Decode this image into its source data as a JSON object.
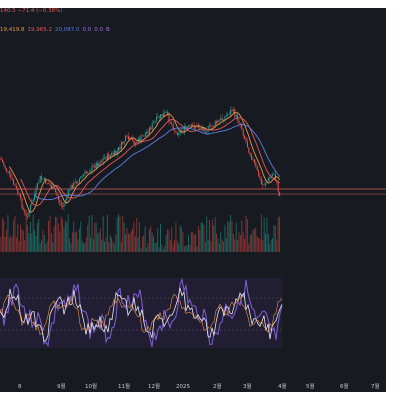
{
  "legend": {
    "price_line": "140.5 −71.4 (−0.38%)",
    "ma_values": [
      {
        "text": "19,419.8",
        "color": "#e8964a"
      },
      {
        "text": "19,965.2",
        "color": "#e05a5a"
      },
      {
        "text": "20,087.0",
        "color": "#5b7fe0"
      },
      {
        "text": "0.0",
        "color": "#a070d8"
      },
      {
        "text": "0.0",
        "color": "#a070d8"
      },
      {
        "text": "B",
        "color": "#a070d8"
      }
    ]
  },
  "x_axis_labels": [
    "8",
    "9월",
    "10월",
    "11월",
    "12월",
    "2025",
    "2월",
    "3월",
    "4월",
    "5월",
    "6월",
    "7월"
  ],
  "colors": {
    "background": "#171a21",
    "candle_up": "#26a69a",
    "candle_down": "#ef5350",
    "ma_fast": "#e8964a",
    "ma_mid": "#e05a5a",
    "ma_slow": "#5b7fe0",
    "horizontal_line": "#e05a5a",
    "osc_fast": "#e6e6f0",
    "osc_slow": "#e8964a",
    "osc_main": "#7b5cc8",
    "osc_band": "#2a2440"
  }
}
